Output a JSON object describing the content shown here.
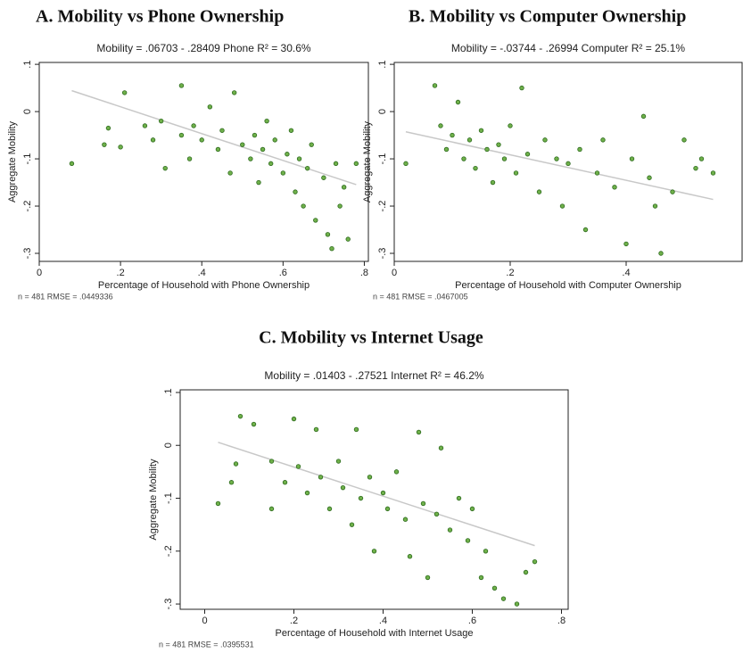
{
  "chart_data": [
    {
      "type": "scatter",
      "title": "A.  Mobility vs Phone Ownership",
      "subtitle": "Mobility = .06703 - .28409 Phone    R² = 30.6%",
      "x_label": "Percentage of Household with Phone Ownership",
      "y_label": "Aggregate Mobility",
      "note": "n = 481   RMSE = .0449336",
      "color": "#6fb04a",
      "fit": {
        "intercept": 0.06703,
        "slope": -0.28409
      },
      "x": [
        0.08,
        0.16,
        0.17,
        0.2,
        0.21,
        0.26,
        0.28,
        0.3,
        0.31,
        0.35,
        0.35,
        0.37,
        0.38,
        0.4,
        0.42,
        0.44,
        0.45,
        0.47,
        0.48,
        0.5,
        0.52,
        0.53,
        0.54,
        0.55,
        0.56,
        0.57,
        0.58,
        0.6,
        0.61,
        0.62,
        0.63,
        0.64,
        0.65,
        0.66,
        0.67,
        0.68,
        0.7,
        0.71,
        0.72,
        0.73,
        0.74,
        0.75,
        0.76,
        0.78
      ],
      "y": [
        -0.11,
        -0.07,
        -0.035,
        -0.075,
        0.04,
        -0.03,
        -0.06,
        -0.02,
        -0.12,
        -0.05,
        0.055,
        -0.1,
        -0.03,
        -0.06,
        0.01,
        -0.08,
        -0.04,
        -0.13,
        0.04,
        -0.07,
        -0.1,
        -0.05,
        -0.15,
        -0.08,
        -0.02,
        -0.11,
        -0.06,
        -0.13,
        -0.09,
        -0.04,
        -0.17,
        -0.1,
        -0.2,
        -0.12,
        -0.07,
        -0.23,
        -0.14,
        -0.26,
        -0.29,
        -0.11,
        -0.2,
        -0.16,
        -0.27,
        -0.11
      ],
      "xlim": [
        0,
        0.81
      ],
      "ylim": [
        -0.317,
        0.104
      ],
      "xticks": [
        0,
        {
          "value": 0.2,
          "label": ".2"
        },
        {
          "value": 0.4,
          "label": ".4"
        },
        {
          "value": 0.6,
          "label": ".6"
        },
        {
          "value": 0.8,
          "label": ".8"
        }
      ],
      "yticks": [
        {
          "value": 0.1,
          "label": ".1"
        },
        0,
        {
          "value": -0.1,
          "label": "-.1"
        },
        {
          "value": -0.2,
          "label": "-.2"
        },
        {
          "value": -0.3,
          "label": "-.3"
        }
      ]
    },
    {
      "type": "scatter",
      "title": "B. Mobility vs Computer Ownership",
      "subtitle": "Mobility = -.03744 - .26994 Computer    R² = 25.1%",
      "x_label": "Percentage of Household with Computer Ownership",
      "y_label": "Aggregate Mobility",
      "note": "n = 481   RMSE = .0467005",
      "color": "#6fb04a",
      "fit": {
        "intercept": -0.03744,
        "slope": -0.26994
      },
      "x": [
        0.02,
        0.07,
        0.08,
        0.09,
        0.1,
        0.11,
        0.12,
        0.13,
        0.14,
        0.15,
        0.16,
        0.17,
        0.18,
        0.19,
        0.2,
        0.21,
        0.22,
        0.23,
        0.25,
        0.26,
        0.28,
        0.29,
        0.3,
        0.32,
        0.33,
        0.35,
        0.36,
        0.38,
        0.4,
        0.41,
        0.43,
        0.44,
        0.45,
        0.46,
        0.48,
        0.5,
        0.52,
        0.53,
        0.55
      ],
      "y": [
        -0.11,
        0.055,
        -0.03,
        -0.08,
        -0.05,
        0.02,
        -0.1,
        -0.06,
        -0.12,
        -0.04,
        -0.08,
        -0.15,
        -0.07,
        -0.1,
        -0.03,
        -0.13,
        0.05,
        -0.09,
        -0.17,
        -0.06,
        -0.1,
        -0.2,
        -0.11,
        -0.08,
        -0.25,
        -0.13,
        -0.06,
        -0.16,
        -0.28,
        -0.1,
        -0.01,
        -0.14,
        -0.2,
        -0.3,
        -0.17,
        -0.06,
        -0.12,
        -0.1,
        -0.13
      ],
      "xlim": [
        0,
        0.6
      ],
      "ylim": [
        -0.317,
        0.104
      ],
      "xticks": [
        0,
        {
          "value": 0.2,
          "label": ".2"
        },
        {
          "value": 0.4,
          "label": ".4"
        }
      ],
      "yticks": [
        {
          "value": 0.1,
          "label": ".1"
        },
        0,
        {
          "value": -0.1,
          "label": "-.1"
        },
        {
          "value": -0.2,
          "label": "-.2"
        },
        {
          "value": -0.3,
          "label": "-.3"
        }
      ]
    },
    {
      "type": "scatter",
      "title": "C. Mobility vs Internet Usage",
      "subtitle": "Mobility = .01403 - .27521 Internet    R² = 46.2%",
      "x_label": "Percentage of Household with Internet Usage",
      "y_label": "Aggregate Mobility",
      "note": "n = 481   RMSE = .0395531",
      "color": "#6fb04a",
      "fit": {
        "intercept": 0.01403,
        "slope": -0.27521
      },
      "x": [
        0.03,
        0.06,
        0.07,
        0.08,
        0.11,
        0.15,
        0.15,
        0.18,
        0.2,
        0.21,
        0.23,
        0.25,
        0.26,
        0.28,
        0.3,
        0.31,
        0.33,
        0.34,
        0.35,
        0.37,
        0.38,
        0.4,
        0.41,
        0.43,
        0.45,
        0.46,
        0.48,
        0.49,
        0.5,
        0.52,
        0.53,
        0.55,
        0.57,
        0.59,
        0.6,
        0.62,
        0.63,
        0.65,
        0.67,
        0.7,
        0.72,
        0.74
      ],
      "y": [
        -0.11,
        -0.07,
        -0.035,
        0.055,
        0.04,
        -0.03,
        -0.12,
        -0.07,
        0.05,
        -0.04,
        -0.09,
        0.03,
        -0.06,
        -0.12,
        -0.03,
        -0.08,
        -0.15,
        0.03,
        -0.1,
        -0.06,
        -0.2,
        -0.09,
        -0.12,
        -0.05,
        -0.14,
        -0.21,
        0.025,
        -0.11,
        -0.25,
        -0.13,
        -0.005,
        -0.16,
        -0.1,
        -0.18,
        -0.12,
        -0.25,
        -0.2,
        -0.27,
        -0.29,
        -0.3,
        -0.24,
        -0.22
      ],
      "xlim": [
        -0.055,
        0.815
      ],
      "ylim": [
        -0.31,
        0.105
      ],
      "xticks": [
        0,
        {
          "value": 0.2,
          "label": ".2"
        },
        {
          "value": 0.4,
          "label": ".4"
        },
        {
          "value": 0.6,
          "label": ".6"
        },
        {
          "value": 0.8,
          "label": ".8"
        }
      ],
      "yticks": [
        {
          "value": 0.1,
          "label": ".1"
        },
        0,
        {
          "value": -0.1,
          "label": "-.1"
        },
        {
          "value": -0.2,
          "label": "-.2"
        },
        {
          "value": -0.3,
          "label": "-.3"
        }
      ]
    }
  ]
}
